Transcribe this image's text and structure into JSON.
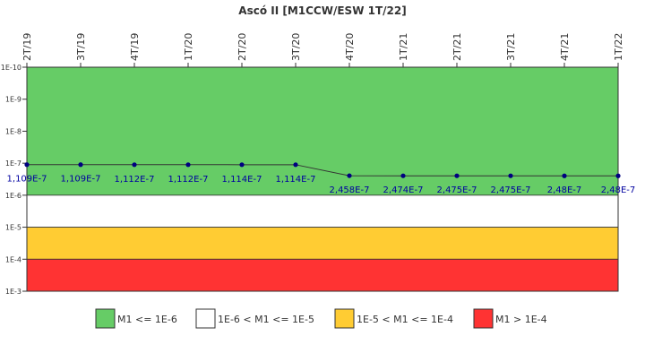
{
  "chart_data": {
    "type": "line",
    "title": "Ascó II [M1CCW/ESW 1T/22]",
    "x_categories": [
      "2T/19",
      "3T/19",
      "4T/19",
      "1T/20",
      "2T/20",
      "3T/20",
      "4T/20",
      "1T/21",
      "2T/21",
      "3T/21",
      "4T/21",
      "1T/22"
    ],
    "y_scale": "log",
    "y_inverted": true,
    "ylim": [
      1e-10,
      0.001
    ],
    "y_ticks": [
      {
        "value": 1e-10,
        "label": "1E-10"
      },
      {
        "value": 1e-09,
        "label": "1E-9"
      },
      {
        "value": 1e-08,
        "label": "1E-8"
      },
      {
        "value": 1e-07,
        "label": "1E-7"
      },
      {
        "value": 1e-06,
        "label": "1E-6"
      },
      {
        "value": 1e-05,
        "label": "1E-5"
      },
      {
        "value": 0.0001,
        "label": "1E-4"
      },
      {
        "value": 0.001,
        "label": "1E-3"
      }
    ],
    "series": [
      {
        "name": "M1",
        "color": "#000080",
        "values": [
          1.109e-07,
          1.109e-07,
          1.112e-07,
          1.112e-07,
          1.114e-07,
          1.114e-07,
          2.458e-07,
          2.474e-07,
          2.475e-07,
          2.475e-07,
          2.48e-07,
          2.48e-07
        ],
        "labels": [
          "1,109E-7",
          "1,109E-7",
          "1,112E-7",
          "1,112E-7",
          "1,114E-7",
          "1,114E-7",
          "2,458E-7",
          "2,474E-7",
          "2,475E-7",
          "2,475E-7",
          "2,48E-7",
          "2,48E-7"
        ]
      }
    ],
    "bands": [
      {
        "from": 1e-10,
        "to": 1e-06,
        "color": "#66cc66",
        "legend": "M1 <= 1E-6"
      },
      {
        "from": 1e-06,
        "to": 1e-05,
        "color": "#ffffff",
        "legend": "1E-6 < M1 <= 1E-5"
      },
      {
        "from": 1e-05,
        "to": 0.0001,
        "color": "#ffcc33",
        "legend": "1E-5 < M1 <= 1E-4"
      },
      {
        "from": 0.0001,
        "to": 0.001,
        "color": "#ff3333",
        "legend": "M1 > 1E-4"
      }
    ],
    "legend_position": "bottom"
  }
}
